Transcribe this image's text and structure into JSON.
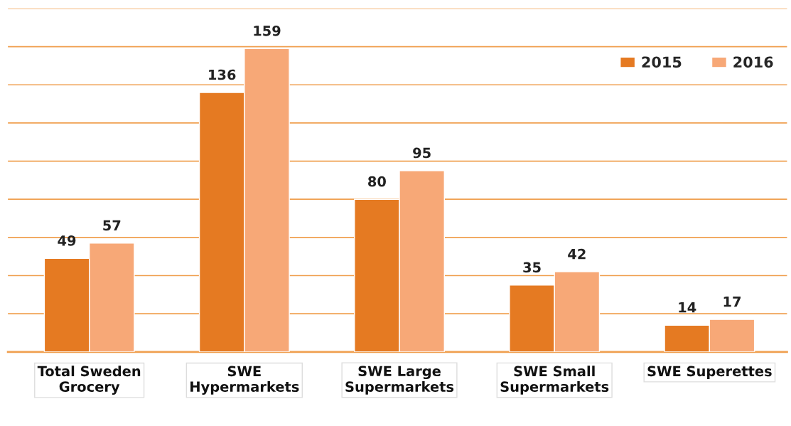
{
  "chart_data": {
    "type": "bar",
    "categories": [
      "Total Sweden\nGrocery",
      "SWE\nHypermarkets",
      "SWE Large\nSupermarkets",
      "SWE Small\nSupermarkets",
      "SWE Superettes"
    ],
    "series": [
      {
        "name": "2015",
        "color": "#e57a22",
        "values": [
          49,
          136,
          80,
          35,
          14
        ]
      },
      {
        "name": "2016",
        "color": "#f7a877",
        "values": [
          57,
          159,
          95,
          42,
          17
        ]
      }
    ],
    "ylim": [
      0,
      180
    ],
    "yticks": [
      {
        "value": 0,
        "label": null
      },
      {
        "value": 20,
        "label": null
      },
      {
        "value": 40,
        "label": null
      },
      {
        "value": 60,
        "label": null
      },
      {
        "value": 80,
        "label": null
      },
      {
        "value": 100,
        "label": null
      },
      {
        "value": 120,
        "label": null
      },
      {
        "value": 140,
        "label": null
      },
      {
        "value": 160,
        "label": null
      },
      {
        "value": 180,
        "label": null
      }
    ],
    "grid": "y",
    "tick_labels": "x",
    "data_labels": true,
    "legend": "top right"
  }
}
